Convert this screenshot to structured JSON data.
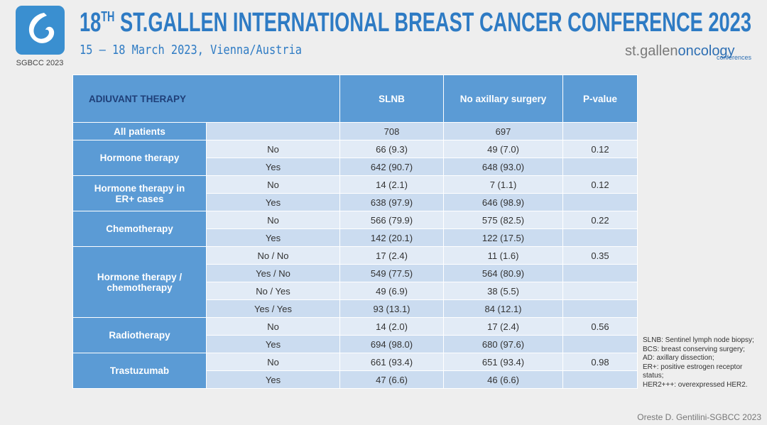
{
  "header": {
    "title_number": "18",
    "title_sup": "TH",
    "title_rest": " ST.GALLEN INTERNATIONAL BREAST CANCER CONFERENCE 2023",
    "subtitle": "15 – 18 March 2023, Vienna/Austria",
    "logo_caption": "SGBCC 2023",
    "brand_a": "st.gallen",
    "brand_b": "oncology",
    "brand_c": "conferences"
  },
  "table": {
    "columns": [
      "ADIUVANT THERAPY",
      "SLNB",
      "No axillary surgery",
      "P-value"
    ],
    "groups": [
      {
        "label": "All patients",
        "rows": [
          {
            "slnb": "708",
            "nas": "697"
          }
        ]
      },
      {
        "label": "Hormone therapy",
        "rows": [
          {
            "sub": "No",
            "slnb": "66 (9.3)",
            "nas": "49 (7.0)",
            "p": "0.12"
          },
          {
            "sub": "Yes",
            "slnb": "642 (90.7)",
            "nas": "648 (93.0)"
          }
        ]
      },
      {
        "label": "Hormone therapy in ER+ cases",
        "rows": [
          {
            "sub": "No",
            "slnb": "14 (2.1)",
            "nas": "7 (1.1)",
            "p": "0.12"
          },
          {
            "sub": "Yes",
            "slnb": "638 (97.9)",
            "nas": "646 (98.9)"
          }
        ]
      },
      {
        "label": "Chemotherapy",
        "rows": [
          {
            "sub": "No",
            "slnb": "566 (79.9)",
            "nas": "575 (82.5)",
            "p": "0.22"
          },
          {
            "sub": "Yes",
            "slnb": "142 (20.1)",
            "nas": "122 (17.5)"
          }
        ]
      },
      {
        "label": "Hormone therapy / chemotherapy",
        "rows": [
          {
            "sub": "No / No",
            "slnb": "17 (2.4)",
            "nas": "11 (1.6)",
            "p": "0.35"
          },
          {
            "sub": "Yes / No",
            "slnb": "549 (77.5)",
            "nas": "564 (80.9)"
          },
          {
            "sub": "No / Yes",
            "slnb": "49 (6.9)",
            "nas": "38 (5.5)"
          },
          {
            "sub": "Yes / Yes",
            "slnb": "93 (13.1)",
            "nas": "84 (12.1)"
          }
        ]
      },
      {
        "label": "Radiotherapy",
        "rows": [
          {
            "sub": "No",
            "slnb": "14 (2.0)",
            "nas": "17 (2.4)",
            "p": "0.56"
          },
          {
            "sub": "Yes",
            "slnb": "694 (98.0)",
            "nas": "680 (97.6)"
          }
        ]
      },
      {
        "label": "Trastuzumab",
        "rows": [
          {
            "sub": "No",
            "slnb": "661 (93.4)",
            "nas": "651 (93.4)",
            "p": "0.98"
          },
          {
            "sub": "Yes",
            "slnb": "47 (6.6)",
            "nas": "46 (6.6)"
          }
        ]
      }
    ]
  },
  "notes": [
    "SLNB: Sentinel lymph node biopsy; BCS: breast conserving surgery;",
    "AD: axillary dissection;",
    "ER+: positive estrogen receptor status;",
    "HER2+++: overexpressed HER2."
  ],
  "footer": "Oreste D. Gentilini-SGBCC 2023"
}
